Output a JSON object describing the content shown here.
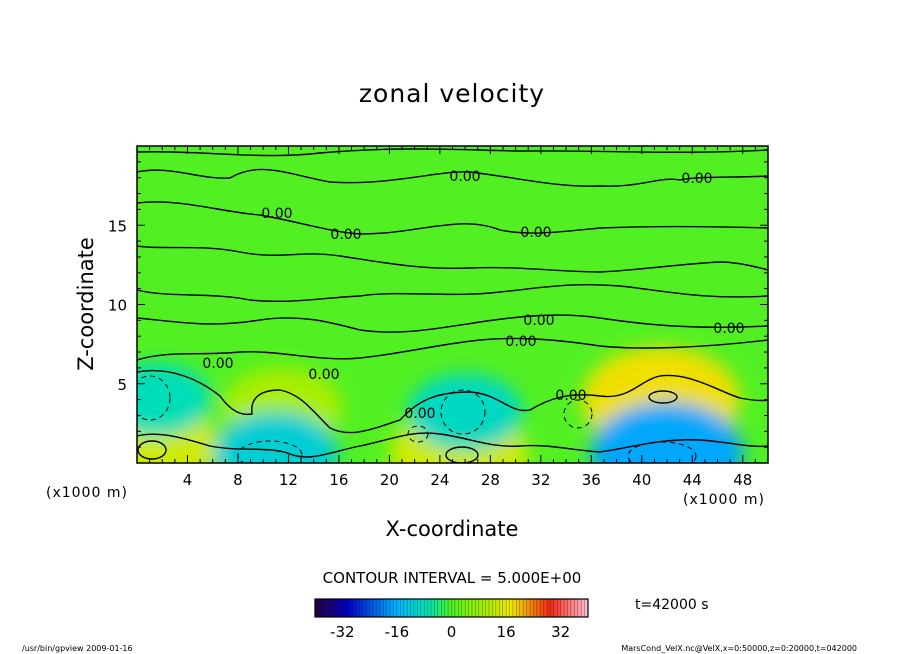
{
  "chart_data": {
    "type": "heatmap",
    "title": "zonal velocity",
    "xlabel": "X-coordinate",
    "ylabel": "Z-coordinate",
    "x_unit_label": "(x1000 m)",
    "z_unit_label": "(x1000 m)",
    "xlim": [
      0,
      50
    ],
    "ylim": [
      0,
      20
    ],
    "x_ticks": [
      4,
      8,
      12,
      16,
      20,
      24,
      28,
      32,
      36,
      40,
      44,
      48
    ],
    "y_ticks": [
      5,
      10,
      15
    ],
    "contour_interval_label": "CONTOUR INTERVAL = 5.000E+00",
    "contour_labels": [
      "0.00",
      "0.00",
      "0.00",
      "0.00",
      "0.00",
      "0.00",
      "0.00",
      "0.00",
      "0.00",
      "0.00",
      "0.00",
      "0.00"
    ],
    "colorbar": {
      "min": -40,
      "max": 40,
      "ticks": [
        "-32",
        "-16",
        "0",
        "16",
        "32"
      ]
    },
    "field_features": [
      {
        "x": 41.5,
        "z": 4.0,
        "value": 18,
        "note": "positive core"
      },
      {
        "x": 11.5,
        "z": 3.5,
        "value": 10
      },
      {
        "x": 1.0,
        "z": 1.0,
        "value": 14
      },
      {
        "x": 25.5,
        "z": 0.5,
        "value": 14
      },
      {
        "x": 26.0,
        "z": 3.2,
        "value": -9
      },
      {
        "x": 1.5,
        "z": 4.0,
        "value": -8
      },
      {
        "x": 11.0,
        "z": 0.6,
        "value": -11
      },
      {
        "x": 42.0,
        "z": 0.6,
        "value": -17
      }
    ],
    "time_label": "t=42000 s"
  },
  "footer": {
    "left": "/usr/bin/gpview   2009-01-16",
    "right": "MarsCond_VelX.nc@VelX,x=0:50000,z=0:20000,t=042000"
  }
}
